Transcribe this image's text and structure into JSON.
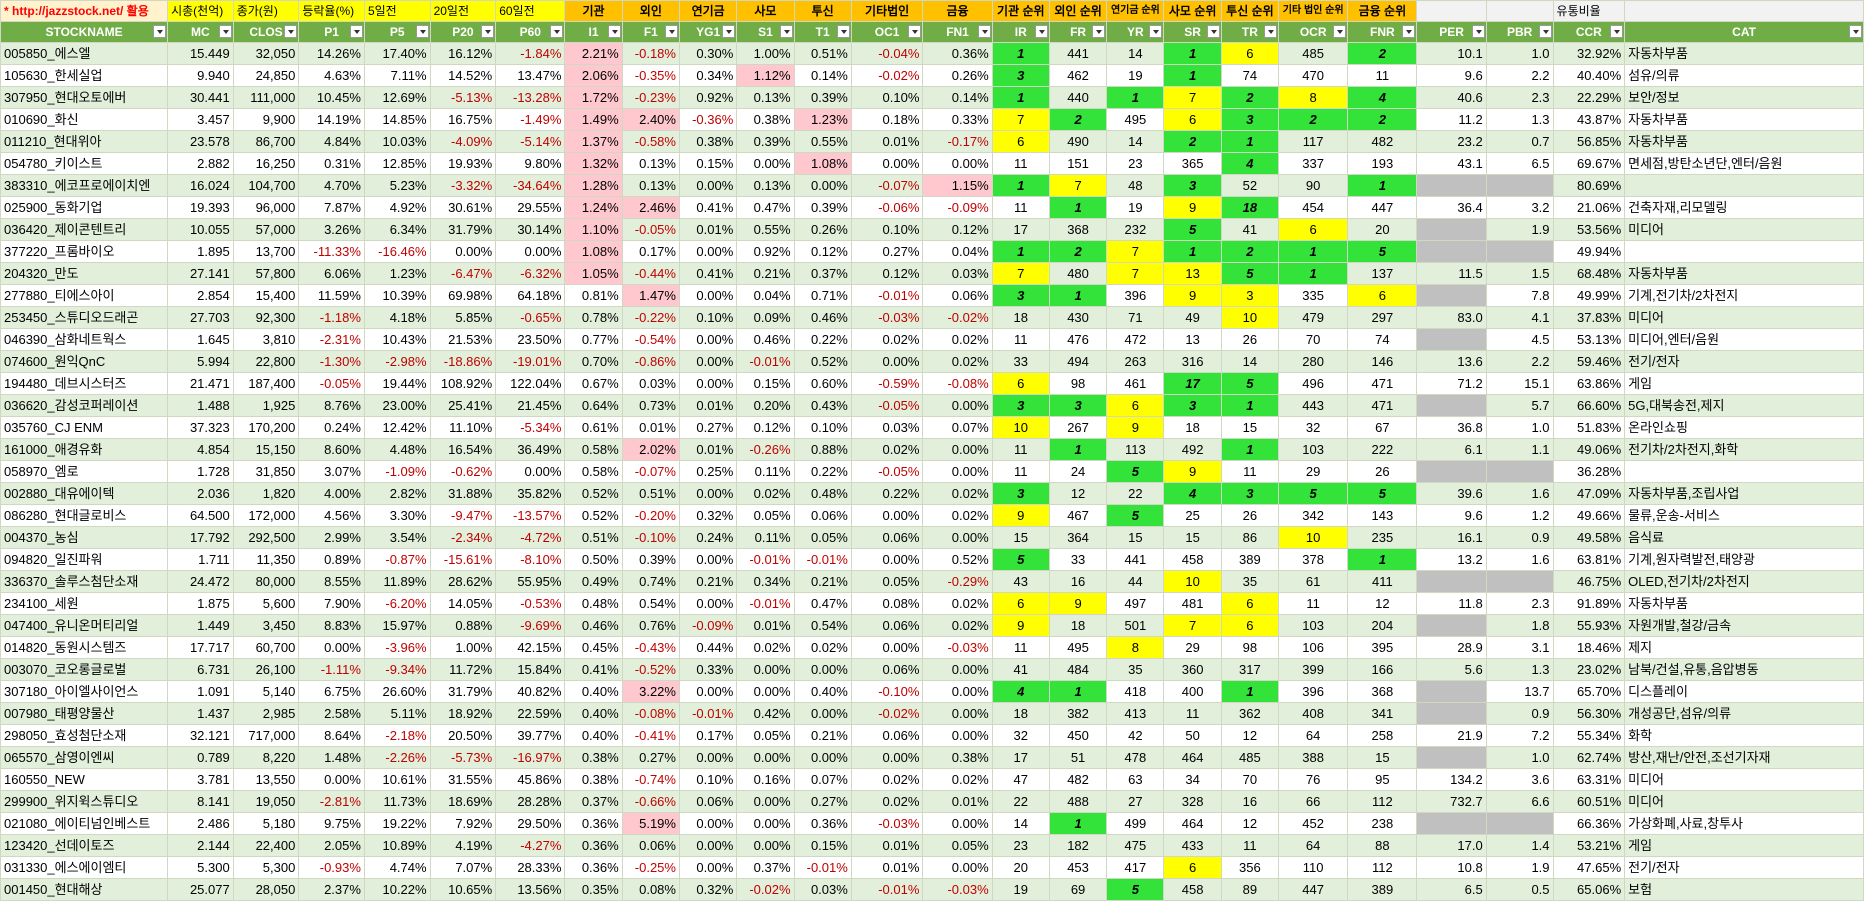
{
  "top_row": [
    "* http://jazzstock.net/ 활용",
    "시총(천억)",
    "종가(원)",
    "등락율(%)",
    "5일전",
    "20일전",
    "60일전",
    "기관",
    "외인",
    "연기금",
    "사모",
    "투신",
    "기타법인",
    "금융",
    "기관 순위",
    "외인 순위",
    "연기금 순위",
    "사모 순위",
    "투신 순위",
    "기타 법인 순위",
    "금융 순위",
    "",
    "",
    "유통비율",
    ""
  ],
  "headers": [
    "STOCKNAME",
    "MC",
    "CLOS",
    "P1",
    "P5",
    "P20",
    "P60",
    "I1",
    "F1",
    "YG1",
    "S1",
    "T1",
    "OC1",
    "FN1",
    "IR",
    "FR",
    "YR",
    "SR",
    "TR",
    "OCR",
    "FNR",
    "PER",
    "PBR",
    "CCR",
    "CAT"
  ],
  "rows": [
    [
      "005850_에스엘",
      "15.449",
      "32,050",
      "14.26%",
      "17.40%",
      "16.12%",
      "-1.84%",
      "2.21%",
      "-0.18%",
      "0.30%",
      "1.00%",
      "0.51%",
      "-0.04%",
      "0.36%",
      "1",
      "441",
      "14",
      "1",
      "6",
      "485",
      "2",
      "10.1",
      "1.0",
      "32.92%",
      "자동차부품"
    ],
    [
      "105630_한세실업",
      "9.940",
      "24,850",
      "4.63%",
      "7.11%",
      "14.52%",
      "13.47%",
      "2.06%",
      "-0.35%",
      "0.34%",
      "1.12%",
      "0.14%",
      "-0.02%",
      "0.26%",
      "3",
      "462",
      "19",
      "1",
      "74",
      "470",
      "11",
      "9.6",
      "2.2",
      "40.40%",
      "섬유/의류"
    ],
    [
      "307950_현대오토에버",
      "30.441",
      "111,000",
      "10.45%",
      "12.69%",
      "-5.13%",
      "-13.28%",
      "1.72%",
      "-0.23%",
      "0.92%",
      "0.13%",
      "0.39%",
      "0.10%",
      "0.14%",
      "1",
      "440",
      "1",
      "7",
      "2",
      "8",
      "4",
      "40.6",
      "2.3",
      "22.29%",
      "보안/정보"
    ],
    [
      "010690_화신",
      "3.457",
      "9,900",
      "14.19%",
      "14.85%",
      "16.75%",
      "-1.49%",
      "1.49%",
      "2.40%",
      "-0.36%",
      "0.38%",
      "1.23%",
      "0.18%",
      "0.33%",
      "7",
      "2",
      "495",
      "6",
      "3",
      "2",
      "2",
      "11.2",
      "1.3",
      "43.87%",
      "자동차부품"
    ],
    [
      "011210_현대위아",
      "23.578",
      "86,700",
      "4.84%",
      "10.03%",
      "-4.09%",
      "-5.14%",
      "1.37%",
      "-0.58%",
      "0.38%",
      "0.39%",
      "0.55%",
      "0.01%",
      "-0.17%",
      "6",
      "490",
      "14",
      "2",
      "1",
      "117",
      "482",
      "23.2",
      "0.7",
      "56.85%",
      "자동차부품"
    ],
    [
      "054780_키이스트",
      "2.882",
      "16,250",
      "0.31%",
      "12.85%",
      "19.93%",
      "9.80%",
      "1.32%",
      "0.13%",
      "0.15%",
      "0.00%",
      "1.08%",
      "0.00%",
      "0.00%",
      "11",
      "151",
      "23",
      "365",
      "4",
      "337",
      "193",
      "43.1",
      "6.5",
      "69.67%",
      "면세점,방탄소년단,엔터/음원"
    ],
    [
      "383310_에코프로에이치엔",
      "16.024",
      "104,700",
      "4.70%",
      "5.23%",
      "-3.32%",
      "-34.64%",
      "1.28%",
      "0.13%",
      "0.00%",
      "0.13%",
      "0.00%",
      "-0.07%",
      "1.15%",
      "1",
      "7",
      "48",
      "3",
      "52",
      "90",
      "1",
      "",
      "",
      "80.69%",
      ""
    ],
    [
      "025900_동화기업",
      "19.393",
      "96,000",
      "7.87%",
      "4.92%",
      "30.61%",
      "29.55%",
      "1.24%",
      "2.46%",
      "0.41%",
      "0.47%",
      "0.39%",
      "-0.06%",
      "-0.09%",
      "11",
      "1",
      "19",
      "9",
      "18",
      "454",
      "447",
      "36.4",
      "3.2",
      "21.06%",
      "건축자재,리모델링"
    ],
    [
      "036420_제이콘텐트리",
      "10.055",
      "57,000",
      "3.26%",
      "6.34%",
      "31.79%",
      "30.14%",
      "1.10%",
      "-0.05%",
      "0.01%",
      "0.55%",
      "0.26%",
      "0.10%",
      "0.12%",
      "17",
      "368",
      "232",
      "5",
      "41",
      "6",
      "20",
      "",
      "1.9",
      "53.56%",
      "미디어"
    ],
    [
      "377220_프롬바이오",
      "1.895",
      "13,700",
      "-11.33%",
      "-16.46%",
      "0.00%",
      "0.00%",
      "1.08%",
      "0.17%",
      "0.00%",
      "0.92%",
      "0.12%",
      "0.27%",
      "0.04%",
      "1",
      "2",
      "7",
      "1",
      "2",
      "1",
      "5",
      "",
      "",
      "49.94%",
      ""
    ],
    [
      "204320_만도",
      "27.141",
      "57,800",
      "6.06%",
      "1.23%",
      "-6.47%",
      "-6.32%",
      "1.05%",
      "-0.44%",
      "0.41%",
      "0.21%",
      "0.37%",
      "0.12%",
      "0.03%",
      "7",
      "480",
      "7",
      "13",
      "5",
      "1",
      "137",
      "11.5",
      "1.5",
      "68.48%",
      "자동차부품"
    ],
    [
      "277880_티에스아이",
      "2.854",
      "15,400",
      "11.59%",
      "10.39%",
      "69.98%",
      "64.18%",
      "0.81%",
      "1.47%",
      "0.00%",
      "0.04%",
      "0.71%",
      "-0.01%",
      "0.06%",
      "3",
      "1",
      "396",
      "9",
      "3",
      "335",
      "6",
      "",
      "7.8",
      "49.99%",
      "기계,전기차/2차전지"
    ],
    [
      "253450_스튜디오드래곤",
      "27.703",
      "92,300",
      "-1.18%",
      "4.18%",
      "5.85%",
      "-0.65%",
      "0.78%",
      "-0.22%",
      "0.10%",
      "0.09%",
      "0.46%",
      "-0.03%",
      "-0.02%",
      "18",
      "430",
      "71",
      "49",
      "10",
      "479",
      "297",
      "83.0",
      "4.1",
      "37.83%",
      "미디어"
    ],
    [
      "046390_삼화네트웍스",
      "1.645",
      "3,810",
      "-2.31%",
      "10.43%",
      "21.53%",
      "23.50%",
      "0.77%",
      "-0.54%",
      "0.00%",
      "0.46%",
      "0.22%",
      "0.02%",
      "0.02%",
      "11",
      "476",
      "472",
      "13",
      "26",
      "70",
      "74",
      "",
      "4.5",
      "53.13%",
      "미디어,엔터/음원"
    ],
    [
      "074600_원익QnC",
      "5.994",
      "22,800",
      "-1.30%",
      "-2.98%",
      "-18.86%",
      "-19.01%",
      "0.70%",
      "-0.86%",
      "0.00%",
      "-0.01%",
      "0.52%",
      "0.00%",
      "0.02%",
      "33",
      "494",
      "263",
      "316",
      "14",
      "280",
      "146",
      "13.6",
      "2.2",
      "59.46%",
      "전기/전자"
    ],
    [
      "194480_데브시스터즈",
      "21.471",
      "187,400",
      "-0.05%",
      "19.44%",
      "108.92%",
      "122.04%",
      "0.67%",
      "0.03%",
      "0.00%",
      "0.15%",
      "0.60%",
      "-0.59%",
      "-0.08%",
      "6",
      "98",
      "461",
      "17",
      "5",
      "496",
      "471",
      "71.2",
      "15.1",
      "63.86%",
      "게임"
    ],
    [
      "036620_감성코퍼레이션",
      "1.488",
      "1,925",
      "8.76%",
      "23.00%",
      "25.41%",
      "21.45%",
      "0.64%",
      "0.73%",
      "0.01%",
      "0.20%",
      "0.43%",
      "-0.05%",
      "0.00%",
      "3",
      "3",
      "6",
      "3",
      "1",
      "443",
      "471",
      "",
      "5.7",
      "66.60%",
      "5G,대북송전,제지"
    ],
    [
      "035760_CJ ENM",
      "37.323",
      "170,200",
      "0.24%",
      "12.42%",
      "11.10%",
      "-5.34%",
      "0.61%",
      "0.01%",
      "0.27%",
      "0.12%",
      "0.10%",
      "0.03%",
      "0.07%",
      "10",
      "267",
      "9",
      "18",
      "15",
      "32",
      "67",
      "36.8",
      "1.0",
      "51.83%",
      "온라인쇼핑"
    ],
    [
      "161000_애경유화",
      "4.854",
      "15,150",
      "8.60%",
      "4.48%",
      "16.54%",
      "36.49%",
      "0.58%",
      "2.02%",
      "0.01%",
      "-0.26%",
      "0.88%",
      "0.02%",
      "0.00%",
      "11",
      "1",
      "113",
      "492",
      "1",
      "103",
      "222",
      "6.1",
      "1.1",
      "49.06%",
      "전기차/2차전지,화학"
    ],
    [
      "058970_엠로",
      "1.728",
      "31,850",
      "3.07%",
      "-1.09%",
      "-0.62%",
      "0.00%",
      "0.58%",
      "-0.07%",
      "0.25%",
      "0.11%",
      "0.22%",
      "-0.05%",
      "0.00%",
      "11",
      "24",
      "5",
      "9",
      "11",
      "29",
      "26",
      "",
      "",
      "36.28%",
      ""
    ],
    [
      "002880_대유에이텍",
      "2.036",
      "1,820",
      "4.00%",
      "2.82%",
      "31.88%",
      "35.82%",
      "0.52%",
      "0.51%",
      "0.00%",
      "0.02%",
      "0.48%",
      "0.22%",
      "0.02%",
      "3",
      "12",
      "22",
      "4",
      "3",
      "5",
      "5",
      "39.6",
      "1.6",
      "47.09%",
      "자동차부품,조립사업"
    ],
    [
      "086280_현대글로비스",
      "64.500",
      "172,000",
      "4.56%",
      "3.30%",
      "-9.47%",
      "-13.57%",
      "0.52%",
      "-0.20%",
      "0.32%",
      "0.05%",
      "0.06%",
      "0.00%",
      "0.02%",
      "9",
      "467",
      "5",
      "25",
      "26",
      "342",
      "143",
      "9.6",
      "1.2",
      "49.66%",
      "물류,운송-서비스"
    ],
    [
      "004370_농심",
      "17.792",
      "292,500",
      "2.99%",
      "3.54%",
      "-2.34%",
      "-4.72%",
      "0.51%",
      "-0.10%",
      "0.24%",
      "0.11%",
      "0.05%",
      "0.06%",
      "0.00%",
      "15",
      "364",
      "15",
      "15",
      "86",
      "10",
      "235",
      "16.1",
      "0.9",
      "49.58%",
      "음식료"
    ],
    [
      "094820_일진파워",
      "1.711",
      "11,350",
      "0.89%",
      "-0.87%",
      "-15.61%",
      "-8.10%",
      "0.50%",
      "0.39%",
      "0.00%",
      "-0.01%",
      "-0.01%",
      "0.00%",
      "0.52%",
      "5",
      "33",
      "441",
      "458",
      "389",
      "378",
      "1",
      "13.2",
      "1.6",
      "63.81%",
      "기계,원자력발전,태양광"
    ],
    [
      "336370_솔루스첨단소재",
      "24.472",
      "80,000",
      "8.55%",
      "11.89%",
      "28.62%",
      "55.95%",
      "0.49%",
      "0.74%",
      "0.21%",
      "0.34%",
      "0.21%",
      "0.05%",
      "-0.29%",
      "43",
      "16",
      "44",
      "10",
      "35",
      "61",
      "411",
      "",
      "",
      "46.75%",
      "OLED,전기차/2차전지"
    ],
    [
      "234100_세원",
      "1.875",
      "5,600",
      "7.90%",
      "-6.20%",
      "14.05%",
      "-0.53%",
      "0.48%",
      "0.54%",
      "0.00%",
      "-0.01%",
      "0.47%",
      "0.08%",
      "0.02%",
      "6",
      "9",
      "497",
      "481",
      "6",
      "11",
      "12",
      "11.8",
      "2.3",
      "91.89%",
      "자동차부품"
    ],
    [
      "047400_유니온머티리얼",
      "1.449",
      "3,450",
      "8.83%",
      "15.97%",
      "0.88%",
      "-9.69%",
      "0.46%",
      "0.76%",
      "-0.09%",
      "0.01%",
      "0.54%",
      "0.06%",
      "0.02%",
      "9",
      "18",
      "501",
      "7",
      "6",
      "103",
      "204",
      "",
      "1.8",
      "55.93%",
      "자원개발,철강/금속"
    ],
    [
      "014820_동원시스템즈",
      "17.717",
      "60,700",
      "0.00%",
      "-3.96%",
      "1.00%",
      "42.15%",
      "0.45%",
      "-0.43%",
      "0.44%",
      "0.02%",
      "0.02%",
      "0.00%",
      "-0.03%",
      "11",
      "495",
      "8",
      "29",
      "98",
      "106",
      "395",
      "28.9",
      "3.1",
      "18.46%",
      "제지"
    ],
    [
      "003070_코오롱글로벌",
      "6.731",
      "26,100",
      "-1.11%",
      "-9.34%",
      "11.72%",
      "15.84%",
      "0.41%",
      "-0.52%",
      "0.33%",
      "0.00%",
      "0.00%",
      "0.06%",
      "0.00%",
      "41",
      "484",
      "35",
      "360",
      "317",
      "399",
      "166",
      "5.6",
      "1.3",
      "23.02%",
      "남북/건설,유통,음압병동"
    ],
    [
      "307180_아이엘사이언스",
      "1.091",
      "5,140",
      "6.75%",
      "26.60%",
      "31.79%",
      "40.82%",
      "0.40%",
      "3.22%",
      "0.00%",
      "0.00%",
      "0.40%",
      "-0.10%",
      "0.00%",
      "4",
      "1",
      "418",
      "400",
      "1",
      "396",
      "368",
      "",
      "13.7",
      "65.70%",
      "디스플레이"
    ],
    [
      "007980_태평양물산",
      "1.437",
      "2,985",
      "2.58%",
      "5.11%",
      "18.92%",
      "22.59%",
      "0.40%",
      "-0.08%",
      "-0.01%",
      "0.42%",
      "0.00%",
      "-0.02%",
      "0.00%",
      "18",
      "382",
      "413",
      "11",
      "362",
      "408",
      "341",
      "",
      "0.9",
      "56.30%",
      "개성공단,섬유/의류"
    ],
    [
      "298050_효성첨단소재",
      "32.121",
      "717,000",
      "8.64%",
      "-2.18%",
      "20.50%",
      "39.77%",
      "0.40%",
      "-0.41%",
      "0.17%",
      "0.05%",
      "0.21%",
      "0.06%",
      "0.00%",
      "32",
      "450",
      "42",
      "50",
      "12",
      "64",
      "258",
      "21.9",
      "7.2",
      "55.34%",
      "화학"
    ],
    [
      "065570_삼영이엔씨",
      "0.789",
      "8,220",
      "1.48%",
      "-2.26%",
      "-5.73%",
      "-16.97%",
      "0.38%",
      "0.27%",
      "0.00%",
      "0.00%",
      "0.00%",
      "0.00%",
      "0.38%",
      "17",
      "51",
      "478",
      "464",
      "485",
      "388",
      "15",
      "",
      "1.0",
      "62.74%",
      "방산,재난/안전,조선기자재"
    ],
    [
      "160550_NEW",
      "3.781",
      "13,550",
      "0.00%",
      "10.61%",
      "31.55%",
      "45.86%",
      "0.38%",
      "-0.74%",
      "0.10%",
      "0.16%",
      "0.07%",
      "0.02%",
      "0.02%",
      "47",
      "482",
      "63",
      "34",
      "70",
      "76",
      "95",
      "134.2",
      "3.6",
      "63.31%",
      "미디어"
    ],
    [
      "299900_위지윅스튜디오",
      "8.141",
      "19,050",
      "-2.81%",
      "11.73%",
      "18.69%",
      "28.28%",
      "0.37%",
      "-0.66%",
      "0.06%",
      "0.00%",
      "0.27%",
      "0.02%",
      "0.01%",
      "22",
      "488",
      "27",
      "328",
      "16",
      "66",
      "112",
      "732.7",
      "6.6",
      "60.51%",
      "미디어"
    ],
    [
      "021080_에이티넘인베스트",
      "2.486",
      "5,180",
      "9.75%",
      "19.22%",
      "7.92%",
      "29.50%",
      "0.36%",
      "5.19%",
      "0.00%",
      "0.00%",
      "0.36%",
      "-0.03%",
      "0.00%",
      "14",
      "1",
      "499",
      "464",
      "12",
      "452",
      "238",
      "",
      "",
      "66.36%",
      "가상화폐,사료,창투사"
    ],
    [
      "123420_선데이토즈",
      "2.144",
      "22,400",
      "2.05%",
      "10.89%",
      "4.19%",
      "-4.27%",
      "0.36%",
      "0.06%",
      "0.00%",
      "0.00%",
      "0.15%",
      "0.01%",
      "0.05%",
      "23",
      "182",
      "475",
      "433",
      "11",
      "64",
      "88",
      "17.0",
      "1.4",
      "53.21%",
      "게임"
    ],
    [
      "031330_에스에이엠티",
      "5.300",
      "5,300",
      "-0.93%",
      "4.74%",
      "7.07%",
      "28.33%",
      "0.36%",
      "-0.25%",
      "0.00%",
      "0.37%",
      "-0.01%",
      "0.01%",
      "0.00%",
      "20",
      "453",
      "417",
      "6",
      "356",
      "110",
      "112",
      "10.8",
      "1.9",
      "47.65%",
      "전기/전자"
    ],
    [
      "001450_현대해상",
      "25.077",
      "28,050",
      "2.37%",
      "10.22%",
      "10.65%",
      "13.56%",
      "0.35%",
      "0.08%",
      "0.32%",
      "-0.02%",
      "0.03%",
      "-0.01%",
      "-0.03%",
      "19",
      "69",
      "5",
      "458",
      "89",
      "447",
      "389",
      "6.5",
      "0.5",
      "65.06%",
      "보험"
    ]
  ],
  "fills": {
    "0": {
      "7": "pk",
      "14": "gr",
      "17": "gr",
      "18": "yl",
      "20": "gr"
    },
    "1": {
      "7": "pk",
      "10": "pk",
      "14": "gr",
      "17": "gr"
    },
    "2": {
      "7": "pk",
      "14": "gr",
      "16": "gr",
      "17": "yl",
      "18": "gr",
      "19": "yl",
      "20": "gr"
    },
    "3": {
      "7": "pk",
      "8": "pk",
      "11": "pk",
      "14": "yl",
      "15": "gr",
      "17": "yl",
      "18": "gr",
      "19": "gr",
      "20": "gr"
    },
    "4": {
      "7": "pk",
      "14": "yl",
      "17": "gr",
      "18": "gr"
    },
    "5": {
      "7": "pk",
      "11": "pk",
      "18": "gr"
    },
    "6": {
      "7": "pk",
      "13": "pk",
      "14": "gr",
      "15": "yl",
      "17": "gr",
      "20": "gr",
      "21": "gy",
      "22": "gy"
    },
    "7": {
      "7": "pk",
      "8": "pk",
      "15": "gr",
      "17": "yl",
      "18": "gr"
    },
    "8": {
      "7": "pk",
      "17": "gr",
      "19": "yl",
      "21": "gy"
    },
    "9": {
      "7": "pk",
      "14": "gr",
      "15": "gr",
      "16": "yl",
      "17": "gr",
      "18": "gr",
      "19": "gr",
      "20": "gr",
      "21": "gy",
      "22": "gy"
    },
    "10": {
      "7": "pk",
      "14": "yl",
      "16": "yl",
      "17": "yl",
      "18": "gr",
      "19": "gr"
    },
    "11": {
      "8": "pk",
      "14": "gr",
      "15": "gr",
      "17": "yl",
      "18": "yl",
      "20": "yl",
      "21": "gy"
    },
    "12": {
      "18": "yl"
    },
    "13": {
      "21": "gy"
    },
    "15": {
      "14": "yl",
      "17": "gr",
      "18": "gr"
    },
    "16": {
      "14": "gr",
      "15": "gr",
      "16": "yl",
      "17": "gr",
      "18": "gr",
      "21": "gy"
    },
    "17": {
      "14": "yl",
      "16": "yl"
    },
    "18": {
      "8": "pk",
      "15": "gr",
      "18": "gr"
    },
    "19": {
      "16": "gr",
      "17": "yl",
      "21": "gy",
      "22": "gy"
    },
    "20": {
      "14": "gr",
      "17": "gr",
      "18": "gr",
      "19": "gr",
      "20": "gr"
    },
    "21": {
      "14": "yl",
      "16": "gr"
    },
    "22": {
      "19": "yl"
    },
    "23": {
      "14": "gr",
      "20": "gr"
    },
    "24": {
      "17": "yl",
      "21": "gy",
      "22": "gy"
    },
    "25": {
      "14": "yl",
      "15": "yl",
      "18": "yl"
    },
    "26": {
      "14": "yl",
      "17": "yl",
      "18": "yl",
      "21": "gy"
    },
    "27": {
      "16": "yl"
    },
    "29": {
      "8": "pk",
      "14": "gr",
      "15": "gr",
      "18": "gr",
      "21": "gy"
    },
    "30": {
      "21": "gy"
    },
    "32": {
      "21": "gy"
    },
    "35": {
      "8": "pk",
      "15": "gr",
      "21": "gy",
      "22": "gy"
    },
    "37": {
      "17": "yl"
    },
    "38": {
      "16": "gr"
    }
  },
  "accent_colors": {
    "header_green": "#70ad47",
    "band_green": "#e2efda",
    "rank_green": "#33e33a",
    "rank_yellow": "#ffff00",
    "positive_pink": "#ffc7ce",
    "negative_text": "#c00000"
  }
}
